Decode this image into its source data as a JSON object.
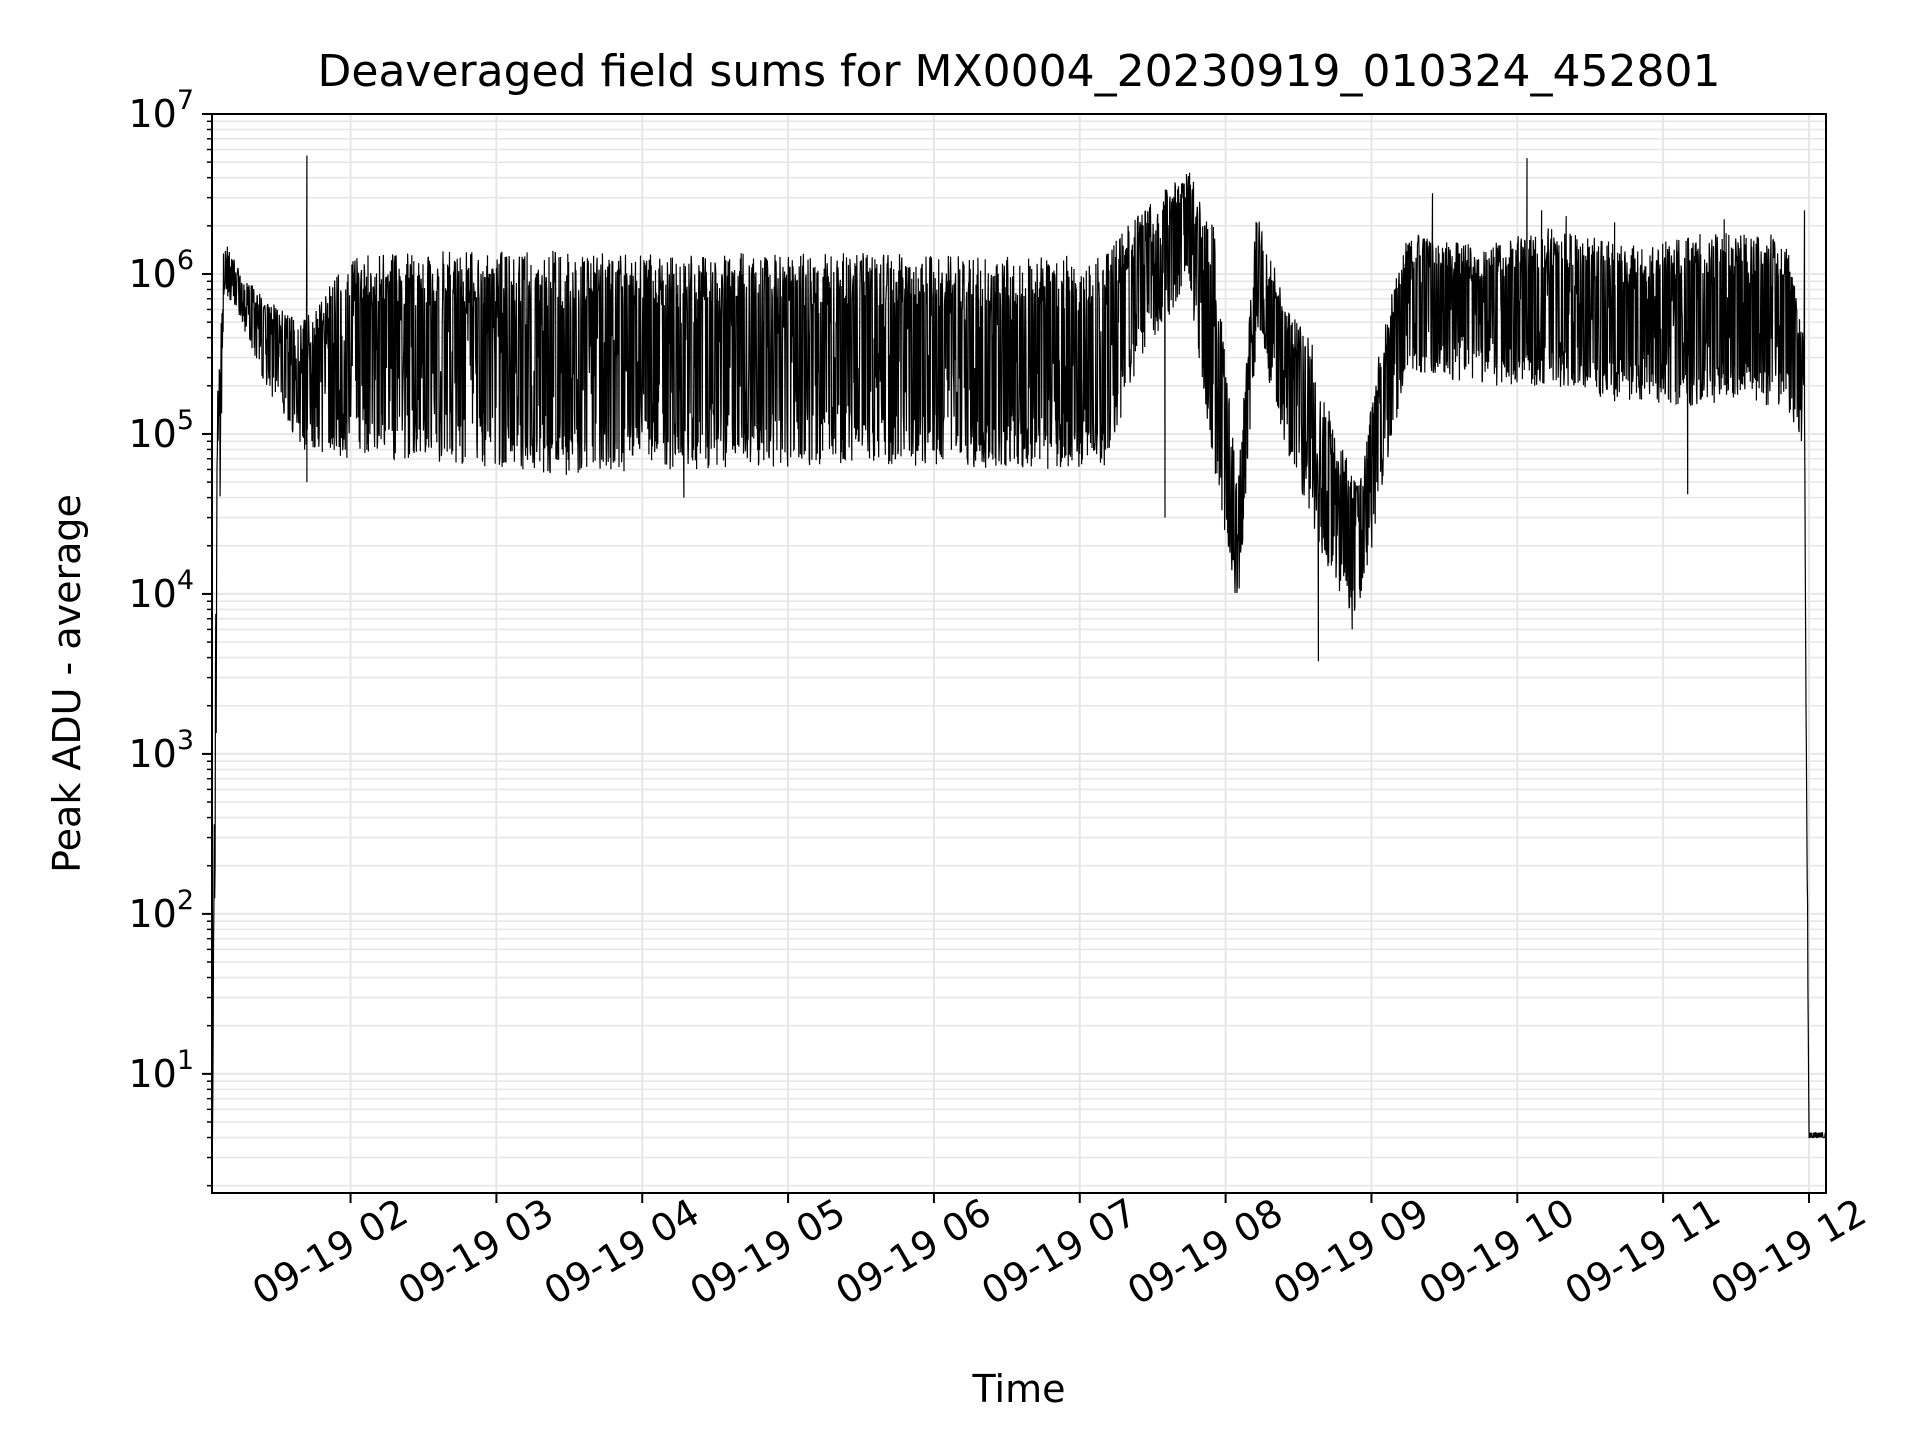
{
  "chart_data": {
    "type": "line",
    "title": "Deaveraged field sums for MX0004_20230919_010324_452801",
    "xlabel": "Time",
    "ylabel": "Peak ADU - average",
    "y_scale": "log",
    "ylim": [
      1.8,
      10000000
    ],
    "xlim": [
      "2023-09-19 01:03",
      "2023-09-19 12:07"
    ],
    "x_ticks": [
      "2023-09-19 02:00",
      "2023-09-19 03:00",
      "2023-09-19 04:00",
      "2023-09-19 05:00",
      "2023-09-19 06:00",
      "2023-09-19 07:00",
      "2023-09-19 08:00",
      "2023-09-19 09:00",
      "2023-09-19 10:00",
      "2023-09-19 11:00",
      "2023-09-19 12:00"
    ],
    "x_tick_labels": [
      "09-19 02",
      "09-19 03",
      "09-19 04",
      "09-19 05",
      "09-19 06",
      "09-19 07",
      "09-19 08",
      "09-19 09",
      "09-19 10",
      "09-19 11",
      "09-19 12"
    ],
    "y_ticks": [
      10,
      100,
      1000,
      10000,
      100000,
      1000000,
      10000000
    ],
    "y_tick_labels": [
      {
        "base": "10",
        "exp": "1"
      },
      {
        "base": "10",
        "exp": "2"
      },
      {
        "base": "10",
        "exp": "3"
      },
      {
        "base": "10",
        "exp": "4"
      },
      {
        "base": "10",
        "exp": "5"
      },
      {
        "base": "10",
        "exp": "6"
      },
      {
        "base": "10",
        "exp": "7"
      }
    ],
    "grid": true,
    "line_color": "#000000",
    "grid_color": "#e6e6e6",
    "series": [
      {
        "envelope": [
          {
            "t": "2023-09-19 01:03",
            "low": 2,
            "high": 2
          },
          {
            "t": "2023-09-19 01:05",
            "low": 2800,
            "high": 140000
          },
          {
            "t": "2023-09-19 01:08",
            "low": 800000,
            "high": 1700000
          },
          {
            "t": "2023-09-19 01:15",
            "low": 500000,
            "high": 1000000
          },
          {
            "t": "2023-09-19 01:25",
            "low": 200000,
            "high": 700000
          },
          {
            "t": "2023-09-19 01:40",
            "low": 80000,
            "high": 500000
          },
          {
            "t": "2023-09-19 02:00",
            "low": 70000,
            "high": 1300000
          },
          {
            "t": "2023-09-19 02:45",
            "low": 65000,
            "high": 1400000
          },
          {
            "t": "2023-09-19 03:30",
            "low": 55000,
            "high": 1400000
          },
          {
            "t": "2023-09-19 04:30",
            "low": 60000,
            "high": 1350000
          },
          {
            "t": "2023-09-19 05:30",
            "low": 65000,
            "high": 1350000
          },
          {
            "t": "2023-09-19 06:30",
            "low": 60000,
            "high": 1300000
          },
          {
            "t": "2023-09-19 07:10",
            "low": 60000,
            "high": 1300000
          },
          {
            "t": "2023-09-19 07:25",
            "low": 300000,
            "high": 2500000
          },
          {
            "t": "2023-09-19 07:45",
            "low": 800000,
            "high": 4500000
          },
          {
            "t": "2023-09-19 07:55",
            "low": 60000,
            "high": 2000000
          },
          {
            "t": "2023-09-19 08:05",
            "low": 8000,
            "high": 50000
          },
          {
            "t": "2023-09-19 08:13",
            "low": 400000,
            "high": 2800000
          },
          {
            "t": "2023-09-19 08:25",
            "low": 80000,
            "high": 600000
          },
          {
            "t": "2023-09-19 08:35",
            "low": 30000,
            "high": 400000
          },
          {
            "t": "2023-09-19 08:45",
            "low": 10000,
            "high": 100000
          },
          {
            "t": "2023-09-19 08:55",
            "low": 7000,
            "high": 50000
          },
          {
            "t": "2023-09-19 09:05",
            "low": 50000,
            "high": 500000
          },
          {
            "t": "2023-09-19 09:15",
            "low": 250000,
            "high": 1800000
          },
          {
            "t": "2023-09-19 09:45",
            "low": 200000,
            "high": 1500000
          },
          {
            "t": "2023-09-19 10:15",
            "low": 200000,
            "high": 2000000
          },
          {
            "t": "2023-09-19 10:45",
            "low": 150000,
            "high": 1500000
          },
          {
            "t": "2023-09-19 11:15",
            "low": 150000,
            "high": 1800000
          },
          {
            "t": "2023-09-19 11:50",
            "low": 150000,
            "high": 1800000
          },
          {
            "t": "2023-09-19 11:58",
            "low": 80000,
            "high": 400000
          },
          {
            "t": "2023-09-19 12:00",
            "low": 4,
            "high": 4
          },
          {
            "t": "2023-09-19 12:07",
            "low": 4,
            "high": 4
          }
        ],
        "spikes": [
          {
            "t": "2023-09-19 01:42",
            "value": 5500000
          },
          {
            "t": "2023-09-19 01:42",
            "value": 50000
          },
          {
            "t": "2023-09-19 04:17",
            "value": 40000
          },
          {
            "t": "2023-09-19 07:35",
            "value": 30000
          },
          {
            "t": "2023-09-19 08:38",
            "value": 3800
          },
          {
            "t": "2023-09-19 08:52",
            "value": 6000
          },
          {
            "t": "2023-09-19 09:25",
            "value": 3200000
          },
          {
            "t": "2023-09-19 10:04",
            "value": 5300000
          },
          {
            "t": "2023-09-19 10:10",
            "value": 2500000
          },
          {
            "t": "2023-09-19 10:20",
            "value": 2300000
          },
          {
            "t": "2023-09-19 10:40",
            "value": 2100000
          },
          {
            "t": "2023-09-19 11:10",
            "value": 42000
          },
          {
            "t": "2023-09-19 11:25",
            "value": 2200000
          },
          {
            "t": "2023-09-19 11:58",
            "value": 2500000
          }
        ]
      }
    ]
  }
}
